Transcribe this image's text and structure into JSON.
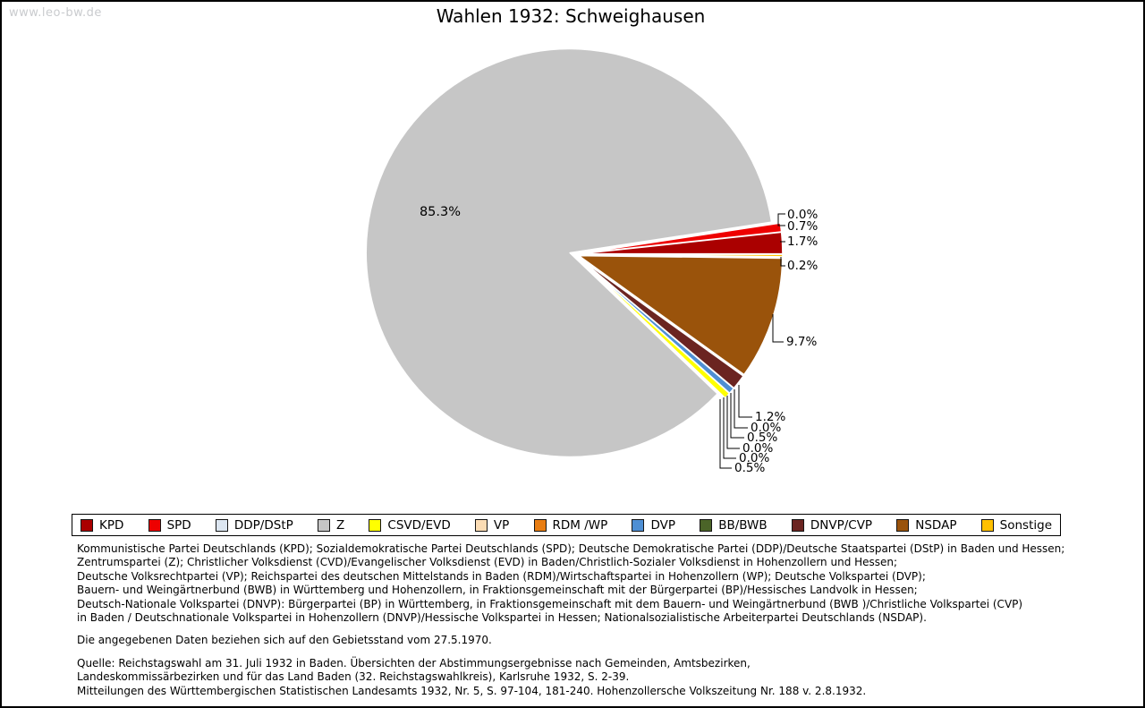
{
  "watermark": "www.leo-bw.de",
  "title": "Wahlen 1932: Schweighausen",
  "chart_data": {
    "type": "pie",
    "title": "Wahlen 1932: Schweighausen",
    "direction": "counterclockwise",
    "start_angle_deg": 0,
    "unit": "percent",
    "slices": [
      {
        "party": "KPD",
        "pct": 1.7,
        "label": "1.7%",
        "color": "#AA0000"
      },
      {
        "party": "SPD",
        "pct": 0.7,
        "label": "0.7%",
        "color": "#EE0000"
      },
      {
        "party": "DDP/DStP",
        "pct": 0.0,
        "label": "0.0%",
        "color": "#DCE6F1"
      },
      {
        "party": "Z",
        "pct": 85.3,
        "label": "85.3%",
        "color": "#C6C6C6"
      },
      {
        "party": "CSVD/EVD",
        "pct": 0.5,
        "label": "0.5%",
        "color": "#FFFF00"
      },
      {
        "party": "VP",
        "pct": 0.0,
        "label": "0.0%",
        "color": "#FBDCB4"
      },
      {
        "party": "RDM /WP",
        "pct": 0.0,
        "label": "0.0%",
        "color": "#E87D12"
      },
      {
        "party": "DVP",
        "pct": 0.5,
        "label": "0.5%",
        "color": "#4E8FD4"
      },
      {
        "party": "BB/BWB",
        "pct": 0.0,
        "label": "0.0%",
        "color": "#4B6428"
      },
      {
        "party": "DNVP/CVP",
        "pct": 1.2,
        "label": "1.2%",
        "color": "#6B2421"
      },
      {
        "party": "NSDAP",
        "pct": 9.7,
        "label": "9.7%",
        "color": "#9A530B"
      },
      {
        "party": "Sonstige",
        "pct": 0.2,
        "label": "0.2%",
        "color": "#FFC000"
      }
    ]
  },
  "footer": {
    "party_description_lines": [
      "Kommunistische Partei Deutschlands (KPD); Sozialdemokratische Partei Deutschlands (SPD); Deutsche Demokratische Partei (DDP)/Deutsche Staatspartei (DStP) in Baden und Hessen;",
      "Zentrumspartei (Z); Christlicher Volksdienst (CVD)/Evangelischer Volksdienst (EVD) in Baden/Christlich-Sozialer Volksdienst in Hohenzollern und Hessen;",
      "Deutsche Volksrechtpartei (VP); Reichspartei des deutschen Mittelstands in Baden (RDM)/Wirtschaftspartei in Hohenzollern (WP); Deutsche Volkspartei (DVP);",
      "Bauern- und Weingärtnerbund (BWB) in Württemberg und Hohenzollern, in Fraktionsgemeinschaft mit der Bürgerpartei (BP)/Hessisches Landvolk in Hessen;",
      "Deutsch-Nationale Volkspartei (DNVP): Bürgerpartei (BP) in Württemberg, in Fraktionsgemeinschaft mit dem Bauern- und Weingärtnerbund (BWB )/Christliche Volkspartei (CVP)",
      "in Baden / Deutschnationale Volkspartei in Hohenzollern (DNVP)/Hessische Volkspartei in Hessen; Nationalsozialistische Arbeiterpartei Deutschlands (NSDAP)."
    ],
    "note": "Die angegebenen Daten beziehen sich auf den Gebietsstand vom 27.5.1970.",
    "source_lines": [
      "Quelle: Reichstagswahl am 31. Juli 1932 in Baden. Übersichten der Abstimmungsergebnisse nach Gemeinden, Amtsbezirken,",
      "Landeskommissärbezirken und für das Land Baden (32. Reichstagswahlkreis), Karlsruhe 1932, S. 2-39.",
      "Mitteilungen des Württembergischen Statistischen Landesamts 1932, Nr. 5, S. 97-104, 181-240. Hohenzollersche Volkszeitung Nr. 188 v. 2.8.1932."
    ]
  }
}
